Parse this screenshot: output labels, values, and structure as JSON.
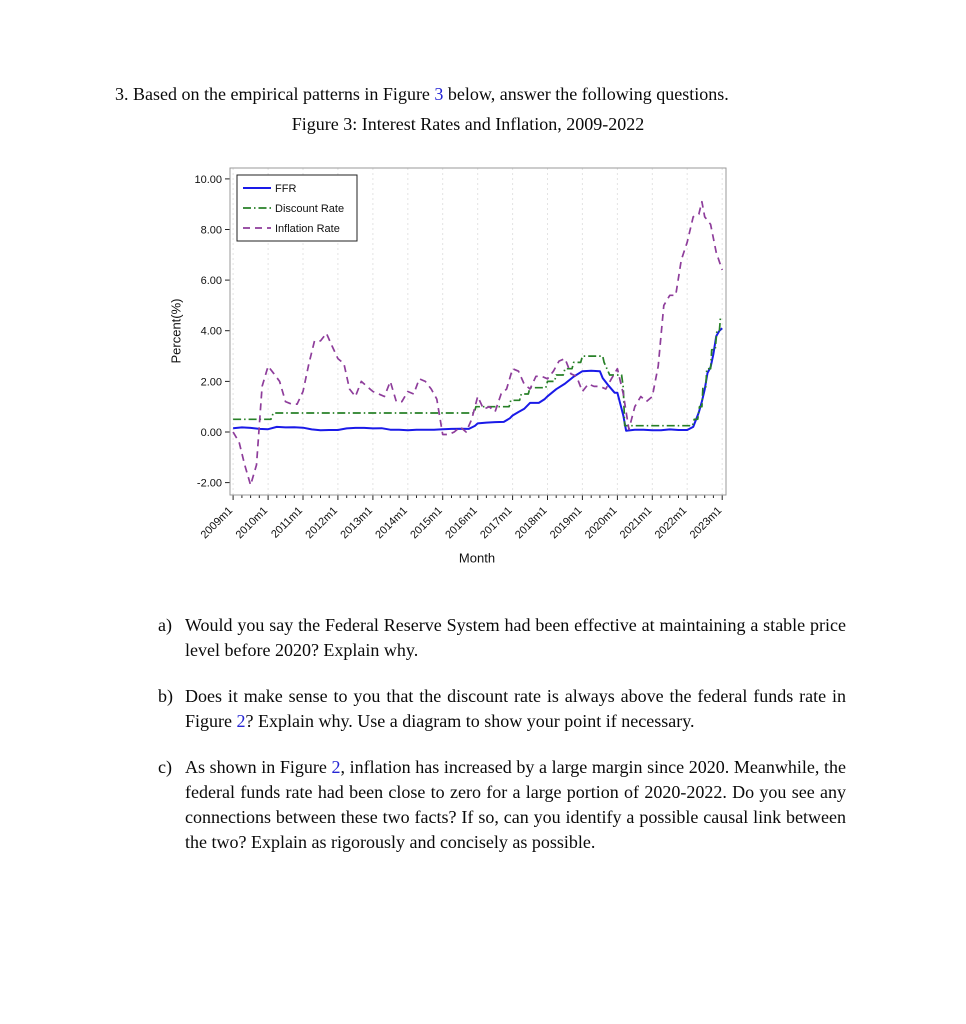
{
  "colors": {
    "link": "#2525d4",
    "plot_border": "#999999",
    "grid": "#e3e3e3",
    "tick": "#222222"
  },
  "intro": {
    "parts": [
      {
        "t": "3. Based on the empirical patterns in Figure "
      },
      {
        "t": "3",
        "link": true
      },
      {
        "t": " below, answer the following questions."
      }
    ]
  },
  "figure": {
    "caption": "Figure 3: Interest Rates and Inflation, 2009-2022"
  },
  "questions": [
    {
      "label": "a)",
      "parts": [
        {
          "t": "Would you say the Federal Reserve System had been effective at maintaining a stable price level before 2020? Explain why."
        }
      ]
    },
    {
      "label": "b)",
      "parts": [
        {
          "t": "Does it make sense to you that the discount rate is always above the federal funds rate in Figure "
        },
        {
          "t": "2",
          "link": true
        },
        {
          "t": "? Explain why. Use a diagram to show your point if necessary."
        }
      ]
    },
    {
      "label": "c)",
      "parts": [
        {
          "t": "As shown in Figure "
        },
        {
          "t": "2",
          "link": true
        },
        {
          "t": ", inflation has increased by a large margin since 2020. Meanwhile, the federal funds rate had been close to zero for a large portion of 2020-2022. Do you see any connections between these two facts? If so, can you identify a possible causal link between the two? Explain as rigorously and concisely as possible."
        }
      ]
    }
  ],
  "chart_data": {
    "type": "line",
    "title": "Figure 3: Interest Rates and Inflation, 2009-2022",
    "xlabel": "Month",
    "ylabel": "Percent(%)",
    "xlim": [
      2008.91,
      2023.11
    ],
    "ylim": [
      -2.49,
      10.43
    ],
    "grid": "vertical-dotted",
    "legend_position": "top-left",
    "x_ticks": [
      "2009m1",
      "2010m1",
      "2011m1",
      "2012m1",
      "2013m1",
      "2014m1",
      "2015m1",
      "2016m1",
      "2017m1",
      "2018m1",
      "2019m1",
      "2020m1",
      "2021m1",
      "2022m1",
      "2023m1"
    ],
    "x_tick_values": [
      2009,
      2010,
      2011,
      2012,
      2013,
      2014,
      2015,
      2016,
      2017,
      2018,
      2019,
      2020,
      2021,
      2022,
      2023
    ],
    "y_ticks": [
      10,
      8,
      6,
      4,
      2,
      0,
      -2
    ],
    "y_tick_labels": [
      "10.00",
      "8.00",
      "6.00",
      "4.00",
      "2.00",
      "0.00",
      "-2.00"
    ],
    "series": [
      {
        "name": "FFR",
        "color": "#1a1ae8",
        "style": "solid",
        "points": [
          [
            2009.0,
            0.15
          ],
          [
            2009.25,
            0.18
          ],
          [
            2009.5,
            0.16
          ],
          [
            2009.75,
            0.12
          ],
          [
            2010.0,
            0.11
          ],
          [
            2010.25,
            0.2
          ],
          [
            2010.5,
            0.18
          ],
          [
            2010.75,
            0.19
          ],
          [
            2011.0,
            0.17
          ],
          [
            2011.25,
            0.1
          ],
          [
            2011.5,
            0.07
          ],
          [
            2011.75,
            0.08
          ],
          [
            2012.0,
            0.08
          ],
          [
            2012.25,
            0.14
          ],
          [
            2012.5,
            0.16
          ],
          [
            2012.75,
            0.16
          ],
          [
            2013.0,
            0.14
          ],
          [
            2013.25,
            0.15
          ],
          [
            2013.5,
            0.09
          ],
          [
            2013.75,
            0.09
          ],
          [
            2014.0,
            0.07
          ],
          [
            2014.25,
            0.09
          ],
          [
            2014.5,
            0.09
          ],
          [
            2014.75,
            0.09
          ],
          [
            2015.0,
            0.11
          ],
          [
            2015.25,
            0.12
          ],
          [
            2015.5,
            0.13
          ],
          [
            2015.75,
            0.12
          ],
          [
            2015.92,
            0.24
          ],
          [
            2016.0,
            0.34
          ],
          [
            2016.25,
            0.37
          ],
          [
            2016.5,
            0.39
          ],
          [
            2016.75,
            0.4
          ],
          [
            2016.92,
            0.54
          ],
          [
            2017.0,
            0.65
          ],
          [
            2017.17,
            0.79
          ],
          [
            2017.33,
            0.91
          ],
          [
            2017.5,
            1.15
          ],
          [
            2017.75,
            1.15
          ],
          [
            2017.92,
            1.3
          ],
          [
            2018.0,
            1.41
          ],
          [
            2018.25,
            1.69
          ],
          [
            2018.5,
            1.91
          ],
          [
            2018.75,
            2.19
          ],
          [
            2019.0,
            2.4
          ],
          [
            2019.25,
            2.42
          ],
          [
            2019.5,
            2.4
          ],
          [
            2019.58,
            2.13
          ],
          [
            2019.75,
            1.83
          ],
          [
            2019.92,
            1.55
          ],
          [
            2020.0,
            1.55
          ],
          [
            2020.17,
            0.65
          ],
          [
            2020.25,
            0.05
          ],
          [
            2020.5,
            0.09
          ],
          [
            2020.75,
            0.09
          ],
          [
            2021.0,
            0.07
          ],
          [
            2021.25,
            0.07
          ],
          [
            2021.5,
            0.1
          ],
          [
            2021.75,
            0.08
          ],
          [
            2022.0,
            0.08
          ],
          [
            2022.17,
            0.2
          ],
          [
            2022.33,
            0.77
          ],
          [
            2022.42,
            1.21
          ],
          [
            2022.5,
            1.68
          ],
          [
            2022.58,
            2.33
          ],
          [
            2022.67,
            2.56
          ],
          [
            2022.75,
            3.08
          ],
          [
            2022.83,
            3.78
          ],
          [
            2022.92,
            4.0
          ],
          [
            2023.0,
            4.1
          ]
        ]
      },
      {
        "name": "Discount Rate",
        "color": "#278027",
        "style": "dash-dot",
        "points": [
          [
            2009.0,
            0.5
          ],
          [
            2010.08,
            0.5
          ],
          [
            2010.15,
            0.75
          ],
          [
            2015.9,
            0.75
          ],
          [
            2015.95,
            1.0
          ],
          [
            2016.9,
            1.0
          ],
          [
            2016.95,
            1.25
          ],
          [
            2017.2,
            1.25
          ],
          [
            2017.25,
            1.5
          ],
          [
            2017.45,
            1.5
          ],
          [
            2017.5,
            1.75
          ],
          [
            2017.95,
            1.75
          ],
          [
            2018.0,
            2.0
          ],
          [
            2018.2,
            2.0
          ],
          [
            2018.25,
            2.25
          ],
          [
            2018.45,
            2.25
          ],
          [
            2018.5,
            2.5
          ],
          [
            2018.7,
            2.5
          ],
          [
            2018.75,
            2.75
          ],
          [
            2018.95,
            2.75
          ],
          [
            2019.0,
            3.0
          ],
          [
            2019.58,
            3.0
          ],
          [
            2019.62,
            2.75
          ],
          [
            2019.7,
            2.5
          ],
          [
            2019.78,
            2.25
          ],
          [
            2020.12,
            2.25
          ],
          [
            2020.17,
            1.75
          ],
          [
            2020.21,
            0.25
          ],
          [
            2022.15,
            0.25
          ],
          [
            2022.2,
            0.5
          ],
          [
            2022.3,
            0.5
          ],
          [
            2022.35,
            1.0
          ],
          [
            2022.42,
            1.0
          ],
          [
            2022.45,
            1.75
          ],
          [
            2022.53,
            1.75
          ],
          [
            2022.56,
            2.5
          ],
          [
            2022.67,
            2.5
          ],
          [
            2022.7,
            3.25
          ],
          [
            2022.8,
            3.25
          ],
          [
            2022.85,
            4.0
          ],
          [
            2022.92,
            4.0
          ],
          [
            2022.95,
            4.5
          ],
          [
            2023.0,
            4.5
          ]
        ]
      },
      {
        "name": "Inflation Rate",
        "color": "#8e3d9b",
        "style": "dashed",
        "points": [
          [
            2009.0,
            0.0
          ],
          [
            2009.17,
            -0.4
          ],
          [
            2009.33,
            -1.3
          ],
          [
            2009.5,
            -2.1
          ],
          [
            2009.67,
            -1.3
          ],
          [
            2009.83,
            1.8
          ],
          [
            2010.0,
            2.6
          ],
          [
            2010.17,
            2.3
          ],
          [
            2010.33,
            2.0
          ],
          [
            2010.5,
            1.2
          ],
          [
            2010.67,
            1.1
          ],
          [
            2010.83,
            1.1
          ],
          [
            2011.0,
            1.6
          ],
          [
            2011.17,
            2.7
          ],
          [
            2011.33,
            3.6
          ],
          [
            2011.5,
            3.6
          ],
          [
            2011.67,
            3.9
          ],
          [
            2011.83,
            3.4
          ],
          [
            2012.0,
            2.9
          ],
          [
            2012.17,
            2.7
          ],
          [
            2012.33,
            1.7
          ],
          [
            2012.5,
            1.4
          ],
          [
            2012.67,
            2.0
          ],
          [
            2012.83,
            1.8
          ],
          [
            2013.0,
            1.6
          ],
          [
            2013.17,
            1.5
          ],
          [
            2013.33,
            1.4
          ],
          [
            2013.5,
            2.0
          ],
          [
            2013.67,
            1.2
          ],
          [
            2013.83,
            1.2
          ],
          [
            2014.0,
            1.6
          ],
          [
            2014.17,
            1.5
          ],
          [
            2014.33,
            2.1
          ],
          [
            2014.5,
            2.0
          ],
          [
            2014.67,
            1.7
          ],
          [
            2014.83,
            1.3
          ],
          [
            2015.0,
            -0.1
          ],
          [
            2015.17,
            -0.1
          ],
          [
            2015.33,
            0.0
          ],
          [
            2015.5,
            0.2
          ],
          [
            2015.67,
            0.0
          ],
          [
            2015.83,
            0.5
          ],
          [
            2016.0,
            1.4
          ],
          [
            2016.17,
            0.9
          ],
          [
            2016.33,
            1.0
          ],
          [
            2016.5,
            0.8
          ],
          [
            2016.67,
            1.5
          ],
          [
            2016.83,
            1.7
          ],
          [
            2017.0,
            2.5
          ],
          [
            2017.17,
            2.4
          ],
          [
            2017.33,
            1.9
          ],
          [
            2017.5,
            1.7
          ],
          [
            2017.67,
            2.2
          ],
          [
            2017.83,
            2.2
          ],
          [
            2018.0,
            2.1
          ],
          [
            2018.17,
            2.4
          ],
          [
            2018.33,
            2.8
          ],
          [
            2018.5,
            2.9
          ],
          [
            2018.67,
            2.3
          ],
          [
            2018.83,
            2.2
          ],
          [
            2019.0,
            1.6
          ],
          [
            2019.17,
            1.9
          ],
          [
            2019.33,
            1.8
          ],
          [
            2019.5,
            1.8
          ],
          [
            2019.67,
            1.7
          ],
          [
            2019.83,
            2.1
          ],
          [
            2020.0,
            2.5
          ],
          [
            2020.17,
            1.5
          ],
          [
            2020.33,
            0.1
          ],
          [
            2020.5,
            1.0
          ],
          [
            2020.67,
            1.4
          ],
          [
            2020.83,
            1.2
          ],
          [
            2021.0,
            1.4
          ],
          [
            2021.17,
            2.6
          ],
          [
            2021.33,
            5.0
          ],
          [
            2021.5,
            5.4
          ],
          [
            2021.67,
            5.4
          ],
          [
            2021.83,
            6.8
          ],
          [
            2022.0,
            7.5
          ],
          [
            2022.17,
            8.5
          ],
          [
            2022.33,
            8.6
          ],
          [
            2022.42,
            9.1
          ],
          [
            2022.5,
            8.5
          ],
          [
            2022.67,
            8.2
          ],
          [
            2022.83,
            7.1
          ],
          [
            2023.0,
            6.4
          ]
        ]
      }
    ]
  }
}
